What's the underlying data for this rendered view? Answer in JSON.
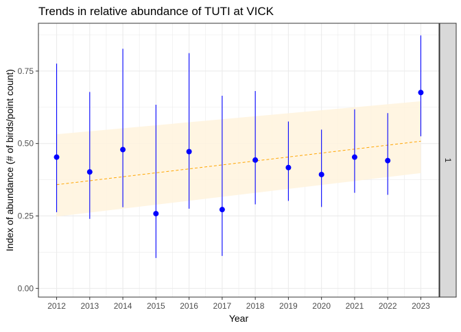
{
  "chart_data": {
    "type": "scatter",
    "title": "Trends in relative abundance of TUTI at VICK",
    "xlabel": "Year",
    "ylabel": "Index of abundance (# of birds/point count)",
    "facet_label": "1",
    "x": [
      2012,
      2013,
      2014,
      2015,
      2016,
      2017,
      2018,
      2019,
      2020,
      2021,
      2022,
      2023
    ],
    "series": [
      {
        "values": [
          0.453,
          0.402,
          0.479,
          0.258,
          0.472,
          0.272,
          0.443,
          0.417,
          0.393,
          0.453,
          0.441,
          0.676
        ],
        "lower": [
          0.263,
          0.24,
          0.28,
          0.105,
          0.275,
          0.112,
          0.29,
          0.302,
          0.281,
          0.33,
          0.323,
          0.525
        ],
        "upper": [
          0.776,
          0.678,
          0.827,
          0.634,
          0.812,
          0.665,
          0.681,
          0.576,
          0.548,
          0.618,
          0.605,
          0.873
        ]
      }
    ],
    "trend": {
      "x": [
        2012,
        2023
      ],
      "fit": [
        0.358,
        0.508
      ],
      "lower": [
        0.248,
        0.398
      ],
      "upper": [
        0.532,
        0.646
      ]
    },
    "xticks": [
      "2012",
      "2013",
      "2014",
      "2015",
      "2016",
      "2017",
      "2018",
      "2019",
      "2020",
      "2021",
      "2022",
      "2023"
    ],
    "yticks": [
      "0.00",
      "0.25",
      "0.50",
      "0.75"
    ],
    "ylim": [
      -0.03,
      0.915
    ],
    "xlim": [
      2011.45,
      2023.55
    ],
    "grid": true,
    "colors": {
      "points": "#0000ff",
      "trend_line": "#ffa500",
      "band": "#fff3dd",
      "grid": "#ebebeb",
      "strip": "#d9d9d9"
    }
  }
}
